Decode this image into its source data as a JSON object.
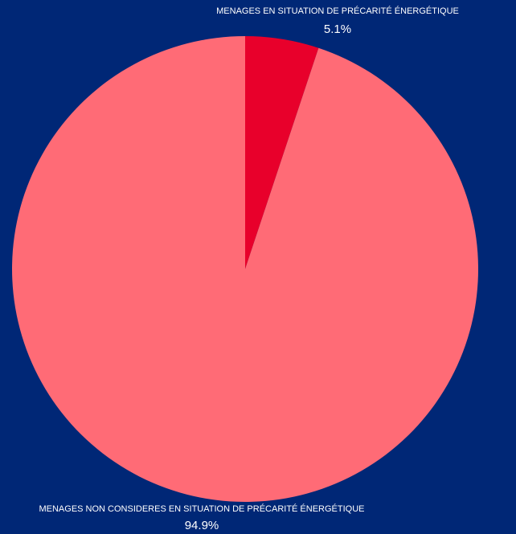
{
  "chart_data": {
    "type": "pie",
    "title": "",
    "slices": [
      {
        "label": "MENAGES EN SITUATION DE PRÉCARITÉ ÉNERGÉTIQUE",
        "value": 5.1,
        "display": "5.1%",
        "color": "#e8002b"
      },
      {
        "label": "MENAGES NON CONSIDERES EN SITUATION DE PRÉCARITÉ ÉNERGÉTIQUE",
        "value": 94.9,
        "display": "94.9%",
        "color": "#ff6b76"
      }
    ],
    "legend": "none",
    "background": "#002776"
  }
}
